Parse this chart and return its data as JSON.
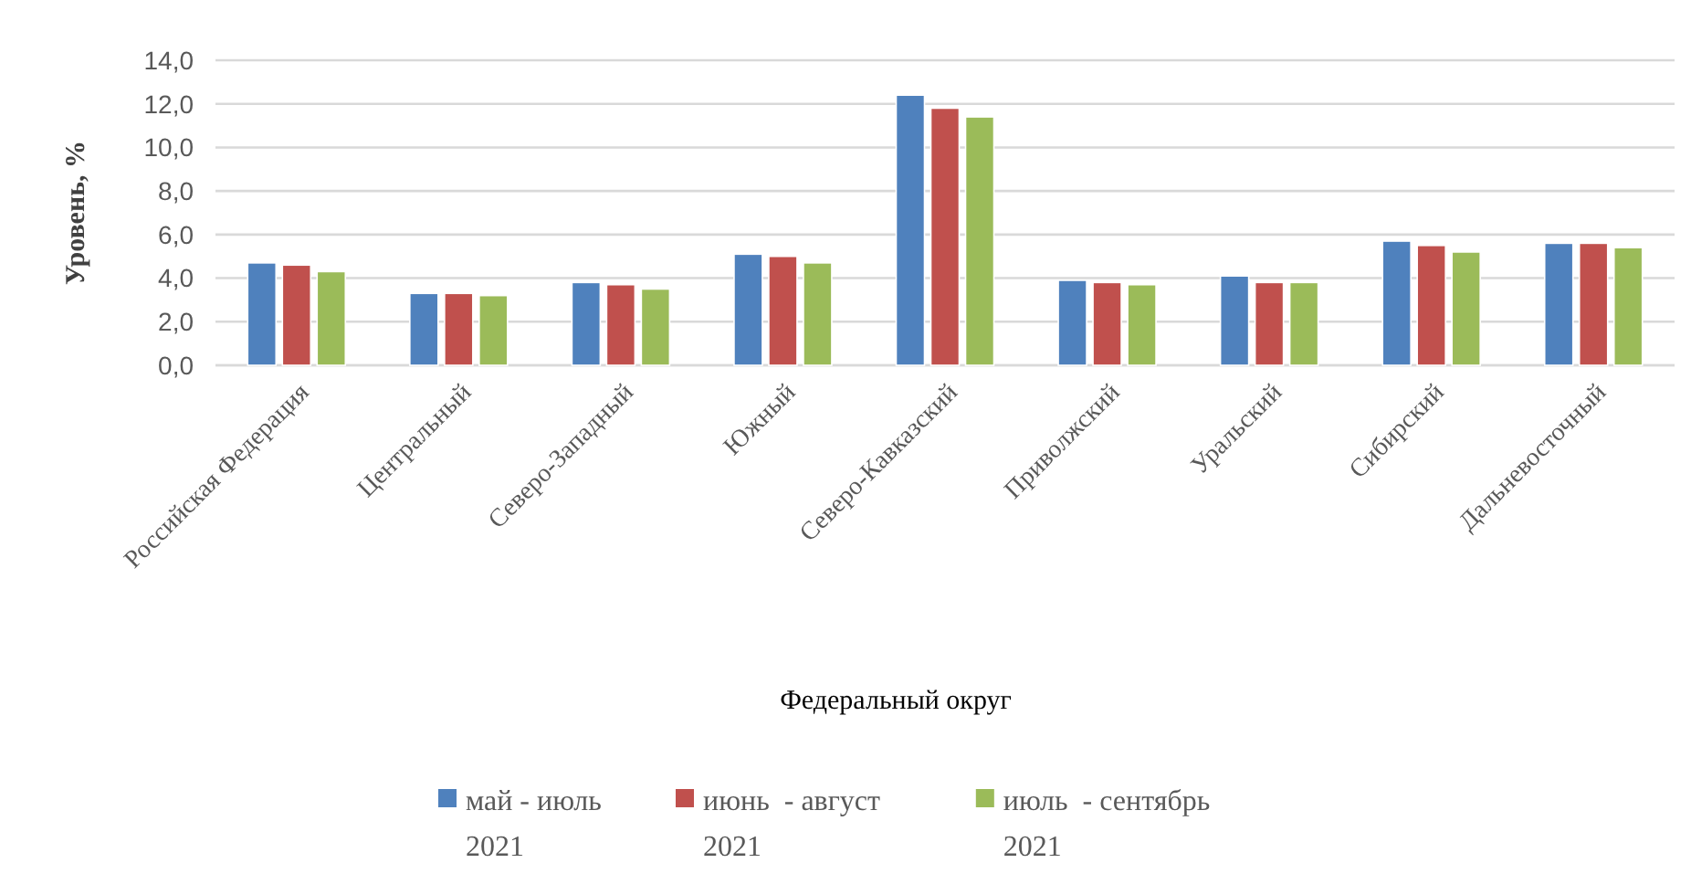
{
  "chart_data": {
    "type": "bar",
    "xlabel": "Федеральный округ",
    "ylabel": "Уровень, %",
    "categories": [
      "Российская Федерация",
      "Центральный",
      "Северо-Западный",
      "Южный",
      "Северо-Кавказский",
      "Приволжский",
      "Уральский",
      "Сибирский",
      "Дальневосточный"
    ],
    "series": [
      {
        "name": "май - июль 2021",
        "color": "#4f81bd",
        "values": [
          4.7,
          3.3,
          3.8,
          5.1,
          12.4,
          3.9,
          4.1,
          5.7,
          5.6
        ]
      },
      {
        "name": "июнь  - август 2021",
        "color": "#c0504d",
        "values": [
          4.6,
          3.3,
          3.7,
          5.0,
          11.8,
          3.8,
          3.8,
          5.5,
          5.6
        ]
      },
      {
        "name": "июль  - сентябрь 2021",
        "color": "#9bbb59",
        "values": [
          4.3,
          3.2,
          3.5,
          4.7,
          11.4,
          3.7,
          3.8,
          5.2,
          5.4
        ]
      }
    ],
    "ylim": [
      0,
      14
    ],
    "yticks": [
      {
        "value": 0,
        "label": "0,0"
      },
      {
        "value": 2,
        "label": "2,0"
      },
      {
        "value": 4,
        "label": "4,0"
      },
      {
        "value": 6,
        "label": "6,0"
      },
      {
        "value": 8,
        "label": "8,0"
      },
      {
        "value": 10,
        "label": "10,0"
      },
      {
        "value": 12,
        "label": "12,0"
      },
      {
        "value": 14,
        "label": "14,0"
      }
    ],
    "grid": "y",
    "legend": "bottom"
  }
}
